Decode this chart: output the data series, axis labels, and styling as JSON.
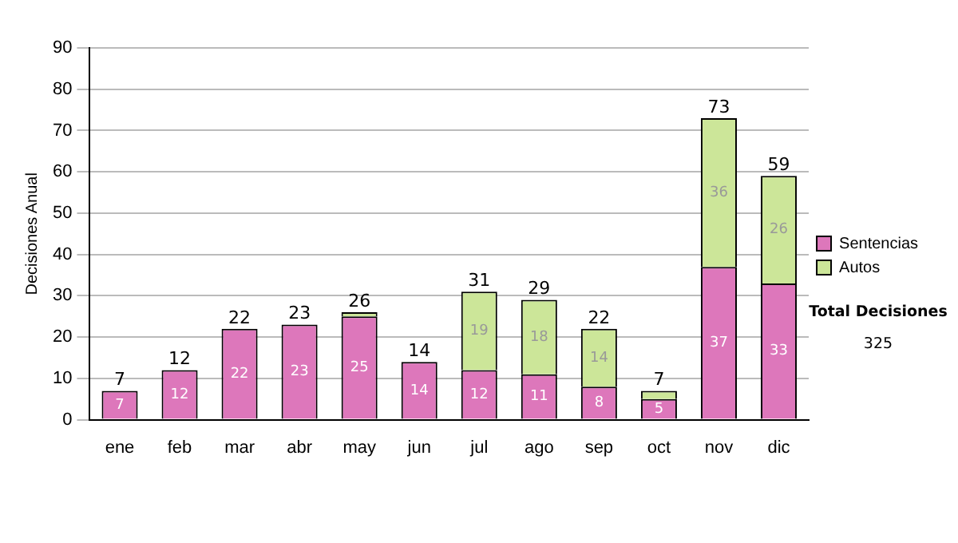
{
  "chart_data": {
    "type": "bar",
    "stacked": true,
    "ylabel": "Decisiones Anual",
    "categories": [
      "ene",
      "feb",
      "mar",
      "abr",
      "may",
      "jun",
      "jul",
      "ago",
      "sep",
      "oct",
      "nov",
      "dic"
    ],
    "series": [
      {
        "name": "Sentencias",
        "color": "#dd77bb",
        "values": [
          7,
          12,
          22,
          23,
          25,
          14,
          12,
          11,
          8,
          5,
          37,
          33
        ],
        "value_labels": [
          "7",
          "12",
          "22",
          "23",
          "25",
          "14",
          "12",
          "11",
          "8",
          "5",
          "37",
          "33"
        ]
      },
      {
        "name": "Autos",
        "color": "#cce699",
        "values": [
          0,
          0,
          0,
          0,
          1,
          0,
          19,
          18,
          14,
          2,
          36,
          26
        ],
        "value_labels": [
          null,
          null,
          null,
          null,
          null,
          null,
          "19",
          "18",
          "14",
          null,
          "36",
          "26"
        ]
      }
    ],
    "totals": [
      "7",
      "12",
      "22",
      "23",
      "26",
      "14",
      "31",
      "29",
      "22",
      "7",
      "73",
      "59"
    ],
    "ylim": [
      0,
      90
    ],
    "yticks": [
      0,
      10,
      20,
      30,
      40,
      50,
      60,
      70,
      80,
      90
    ],
    "grid": "y",
    "legend": "right",
    "annotations": [
      "Total Decisiones",
      "325"
    ]
  }
}
